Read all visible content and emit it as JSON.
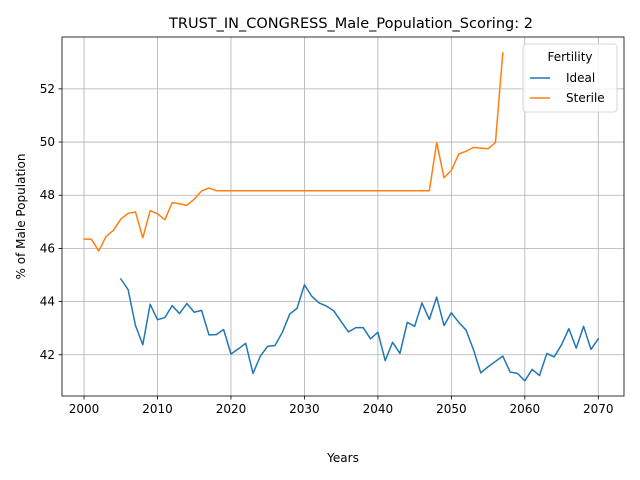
{
  "chart_data": {
    "type": "line",
    "title": "TRUST_IN_CONGRESS_Male_Population_Scoring: 2",
    "xlabel": "Years",
    "ylabel": "% of Male Population",
    "xlim": [
      1997,
      2073.5
    ],
    "ylim": [
      40.45,
      53.95
    ],
    "xticks": [
      "2000",
      "2010",
      "2020",
      "2030",
      "2040",
      "2050",
      "2060",
      "2070"
    ],
    "yticks": [
      "42",
      "44",
      "46",
      "48",
      "50",
      "52"
    ],
    "grid": true,
    "legend": {
      "title": "Fertility",
      "placement": "top-right"
    },
    "series": [
      {
        "name": "Ideal",
        "color": "#1f77b4",
        "x": [
          2005,
          2006,
          2007,
          2008,
          2009,
          2010,
          2011,
          2012,
          2013,
          2014,
          2015,
          2016,
          2017,
          2018,
          2019,
          2020,
          2021,
          2022,
          2023,
          2024,
          2025,
          2026,
          2027,
          2028,
          2029,
          2030,
          2031,
          2032,
          2033,
          2034,
          2035,
          2036,
          2037,
          2038,
          2039,
          2040,
          2041,
          2042,
          2043,
          2044,
          2045,
          2046,
          2047,
          2048,
          2049,
          2050,
          2051,
          2052,
          2053,
          2054,
          2055,
          2056,
          2057,
          2058,
          2059,
          2060,
          2061,
          2062,
          2063,
          2064,
          2065,
          2066,
          2067,
          2068,
          2069,
          2070
        ],
        "y": [
          44.85,
          44.45,
          43.1,
          42.38,
          43.9,
          43.32,
          43.4,
          43.85,
          43.55,
          43.93,
          43.6,
          43.67,
          42.75,
          42.76,
          42.95,
          42.03,
          42.22,
          42.43,
          41.3,
          41.95,
          42.32,
          42.35,
          42.85,
          43.53,
          43.75,
          44.63,
          44.2,
          43.95,
          43.83,
          43.65,
          43.25,
          42.86,
          43.02,
          43.02,
          42.6,
          42.85,
          41.78,
          42.47,
          42.05,
          43.22,
          43.07,
          43.95,
          43.33,
          44.17,
          43.1,
          43.58,
          43.22,
          42.93,
          42.2,
          41.32,
          41.55,
          41.75,
          41.95,
          41.35,
          41.3,
          41.02,
          41.45,
          41.22,
          42.05,
          41.92,
          42.38,
          42.98,
          42.25,
          43.07,
          42.2,
          42.6
        ]
      },
      {
        "name": "Sterile",
        "color": "#ff7f0e",
        "x": [
          2000,
          2001,
          2002,
          2003,
          2004,
          2005,
          2006,
          2007,
          2008,
          2009,
          2010,
          2011,
          2012,
          2013,
          2014,
          2015,
          2016,
          2017,
          2018,
          2019,
          2020,
          2021,
          2022,
          2023,
          2024,
          2025,
          2026,
          2027,
          2028,
          2029,
          2030,
          2031,
          2032,
          2033,
          2034,
          2035,
          2036,
          2037,
          2038,
          2039,
          2040,
          2041,
          2042,
          2043,
          2044,
          2045,
          2046,
          2047,
          2048,
          2049,
          2050,
          2051,
          2052,
          2053,
          2054,
          2055,
          2056,
          2057
        ],
        "y": [
          46.35,
          46.35,
          45.9,
          46.45,
          46.68,
          47.1,
          47.32,
          47.37,
          46.4,
          47.42,
          47.3,
          47.08,
          47.72,
          47.68,
          47.62,
          47.85,
          48.16,
          48.27,
          48.17,
          48.17,
          48.17,
          48.17,
          48.17,
          48.17,
          48.17,
          48.17,
          48.17,
          48.17,
          48.17,
          48.17,
          48.17,
          48.17,
          48.17,
          48.17,
          48.17,
          48.17,
          48.17,
          48.17,
          48.17,
          48.17,
          48.17,
          48.17,
          48.17,
          48.17,
          48.17,
          48.17,
          48.17,
          48.17,
          49.98,
          48.66,
          48.93,
          49.55,
          49.65,
          49.8,
          49.77,
          49.75,
          49.98,
          53.35
        ]
      }
    ]
  }
}
